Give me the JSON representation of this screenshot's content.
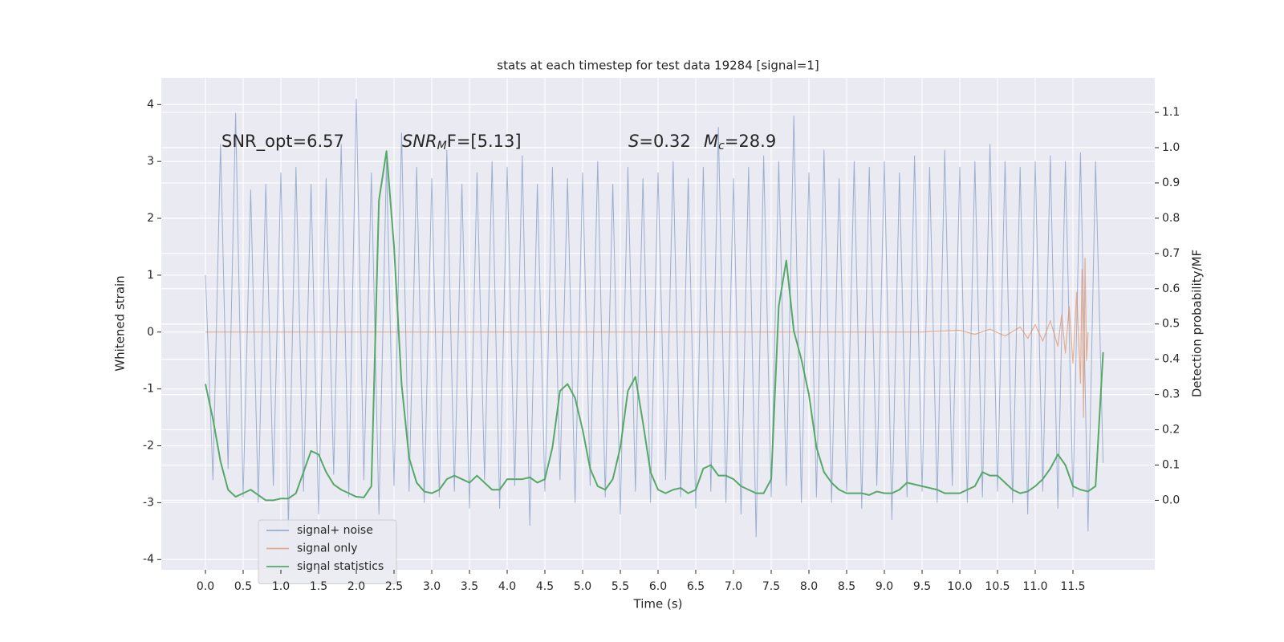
{
  "chart_data": {
    "type": "line",
    "title": "stats at each timestep for test data 19284 [signal=1]",
    "xlabel": "Time (s)",
    "ylabel": "Whitened strain",
    "y2label": "Detection probability/MF",
    "annotations": [
      [
        "SNR_opt=6.57"
      ],
      [
        "SNR",
        "M",
        "F=[5.13]"
      ],
      [
        "S",
        "=0.32"
      ],
      [
        "M",
        "c",
        "=28.9"
      ]
    ],
    "xlim": [
      -0.585,
      12.585
    ],
    "ylim": [
      -4.18,
      4.47
    ],
    "y2lim": [
      -0.197,
      1.198
    ],
    "xticks": [
      {
        "value": 0,
        "label": "0.0"
      },
      0.5,
      {
        "value": 1,
        "label": "1.0"
      },
      1.5,
      {
        "value": 2,
        "label": "2.0"
      },
      2.5,
      {
        "value": 3,
        "label": "3.0"
      },
      3.5,
      {
        "value": 4,
        "label": "4.0"
      },
      4.5,
      {
        "value": 5,
        "label": "5.0"
      },
      5.5,
      {
        "value": 6,
        "label": "6.0"
      },
      6.5,
      {
        "value": 7,
        "label": "7.0"
      },
      7.5,
      {
        "value": 8,
        "label": "8.0"
      },
      8.5,
      {
        "value": 9,
        "label": "9.0"
      },
      9.5,
      {
        "value": 10,
        "label": "10.0"
      },
      10.5,
      {
        "value": 11,
        "label": "11.0"
      },
      11.5
    ],
    "yticks": [
      -4,
      -3,
      -2,
      -1,
      0,
      1,
      2,
      3,
      4
    ],
    "y2ticks": [
      {
        "value": 0,
        "label": "0.0"
      },
      0.1,
      0.2,
      0.3,
      0.4,
      0.5,
      0.6,
      0.7,
      0.8,
      0.9,
      {
        "value": 1,
        "label": "1.0"
      },
      1.1
    ],
    "grid": true,
    "legend": "lower left",
    "x": [
      0,
      0.1,
      0.2,
      0.3,
      0.4,
      0.5,
      0.6,
      0.7,
      0.8,
      0.9,
      1,
      1.1,
      1.2,
      1.3,
      1.4,
      1.5,
      1.6,
      1.7,
      1.8,
      1.9,
      2,
      2.1,
      2.2,
      2.3,
      2.4,
      2.5,
      2.6,
      2.7,
      2.8,
      2.9,
      3,
      3.1,
      3.2,
      3.3,
      3.4,
      3.5,
      3.6,
      3.7,
      3.8,
      3.9,
      4,
      4.1,
      4.2,
      4.3,
      4.4,
      4.5,
      4.6,
      4.7,
      4.8,
      4.9,
      5,
      5.1,
      5.2,
      5.3,
      5.4,
      5.5,
      5.6,
      5.7,
      5.8,
      5.9,
      6,
      6.1,
      6.2,
      6.3,
      6.4,
      6.5,
      6.6,
      6.7,
      6.8,
      6.9,
      7,
      7.1,
      7.2,
      7.3,
      7.4,
      7.5,
      7.6,
      7.7,
      7.8,
      7.9,
      8,
      8.1,
      8.2,
      8.3,
      8.4,
      8.5,
      8.6,
      8.7,
      8.8,
      8.9,
      9,
      9.1,
      9.2,
      9.3,
      9.4,
      9.5,
      9.6,
      9.7,
      9.8,
      9.9,
      10,
      10.1,
      10.2,
      10.3,
      10.4,
      10.5,
      10.6,
      10.7,
      10.8,
      10.9,
      11,
      11.1,
      11.2,
      11.3,
      11.4,
      11.5,
      11.6,
      11.7,
      11.8,
      11.9
    ],
    "series": [
      {
        "name": "signal+ noise",
        "color": "#4c72b0",
        "axis": "y",
        "values": [
          1.0,
          -2.6,
          3.3,
          -2.4,
          3.85,
          -2.9,
          2.5,
          -3.0,
          2.6,
          -2.7,
          2.8,
          -3.4,
          2.9,
          -2.8,
          2.6,
          -3.2,
          2.7,
          -2.5,
          3.3,
          -2.9,
          4.1,
          -2.6,
          2.8,
          -3.2,
          3.0,
          -2.7,
          3.5,
          -2.8,
          2.9,
          -3.0,
          2.7,
          -2.9,
          3.2,
          -2.8,
          2.6,
          -3.1,
          2.8,
          -2.6,
          3.0,
          -3.1,
          2.9,
          -2.7,
          3.1,
          -3.4,
          2.6,
          -2.8,
          2.9,
          -2.6,
          2.7,
          -3.0,
          2.8,
          -2.7,
          3.0,
          -2.9,
          2.6,
          -3.2,
          2.9,
          -2.8,
          2.7,
          -3.0,
          2.8,
          -2.6,
          3.0,
          -2.9,
          2.7,
          -3.1,
          2.9,
          -2.8,
          3.6,
          -3.0,
          2.7,
          -3.2,
          2.9,
          -3.6,
          3.1,
          -2.9,
          3.0,
          -2.7,
          3.8,
          -3.0,
          2.8,
          -2.9,
          3.2,
          -3.0,
          2.7,
          -2.8,
          3.0,
          -3.1,
          2.9,
          -2.7,
          3.0,
          -3.3,
          2.8,
          -2.9,
          3.1,
          -2.8,
          2.9,
          -3.0,
          3.2,
          -2.7,
          2.9,
          -3.0,
          3.0,
          -2.9,
          3.3,
          -2.8,
          3.0,
          -3.0,
          2.9,
          -3.2,
          3.0,
          -2.8,
          3.1,
          -3.1,
          3.0,
          -2.9,
          3.15,
          -3.5,
          3.0,
          -2.3
        ]
      },
      {
        "name": "signal only",
        "color": "#dd8452",
        "axis": "y",
        "x": [
          0,
          9.5,
          10.0,
          10.2,
          10.4,
          10.6,
          10.8,
          10.9,
          11.0,
          11.1,
          11.2,
          11.3,
          11.35,
          11.4,
          11.45,
          11.5,
          11.55,
          11.6,
          11.62,
          11.64,
          11.66,
          11.68,
          11.7
        ],
        "values": [
          0,
          0,
          0.03,
          -0.04,
          0.05,
          -0.07,
          0.09,
          -0.11,
          0.13,
          -0.16,
          0.2,
          -0.25,
          0.3,
          -0.37,
          0.45,
          -0.55,
          0.7,
          -0.9,
          1.1,
          -1.5,
          1.3,
          -0.5,
          0
        ]
      },
      {
        "name": "signal statistics",
        "color": "#55a868",
        "axis": "y2",
        "values": [
          0.33,
          0.23,
          0.11,
          0.03,
          0.01,
          0.02,
          0.03,
          0.015,
          0,
          0,
          0.005,
          0.005,
          0.02,
          0.08,
          0.14,
          0.13,
          0.08,
          0.045,
          0.03,
          0.02,
          0.01,
          0.008,
          0.04,
          0.85,
          0.99,
          0.72,
          0.33,
          0.12,
          0.05,
          0.025,
          0.02,
          0.03,
          0.06,
          0.07,
          0.06,
          0.05,
          0.07,
          0.05,
          0.03,
          0.03,
          0.06,
          0.06,
          0.06,
          0.065,
          0.05,
          0.06,
          0.15,
          0.31,
          0.33,
          0.29,
          0.2,
          0.09,
          0.04,
          0.03,
          0.06,
          0.15,
          0.31,
          0.35,
          0.22,
          0.08,
          0.03,
          0.02,
          0.03,
          0.035,
          0.02,
          0.03,
          0.09,
          0.1,
          0.07,
          0.07,
          0.06,
          0.04,
          0.03,
          0.02,
          0.02,
          0.06,
          0.55,
          0.68,
          0.48,
          0.4,
          0.3,
          0.15,
          0.08,
          0.05,
          0.03,
          0.02,
          0.02,
          0.02,
          0.015,
          0.025,
          0.02,
          0.02,
          0.03,
          0.05,
          0.045,
          0.04,
          0.035,
          0.03,
          0.02,
          0.02,
          0.02,
          0.03,
          0.04,
          0.08,
          0.07,
          0.07,
          0.05,
          0.03,
          0.02,
          0.025,
          0.04,
          0.06,
          0.09,
          0.13,
          0.1,
          0.04,
          0.03,
          0.025,
          0.04,
          0.42
        ]
      }
    ]
  }
}
